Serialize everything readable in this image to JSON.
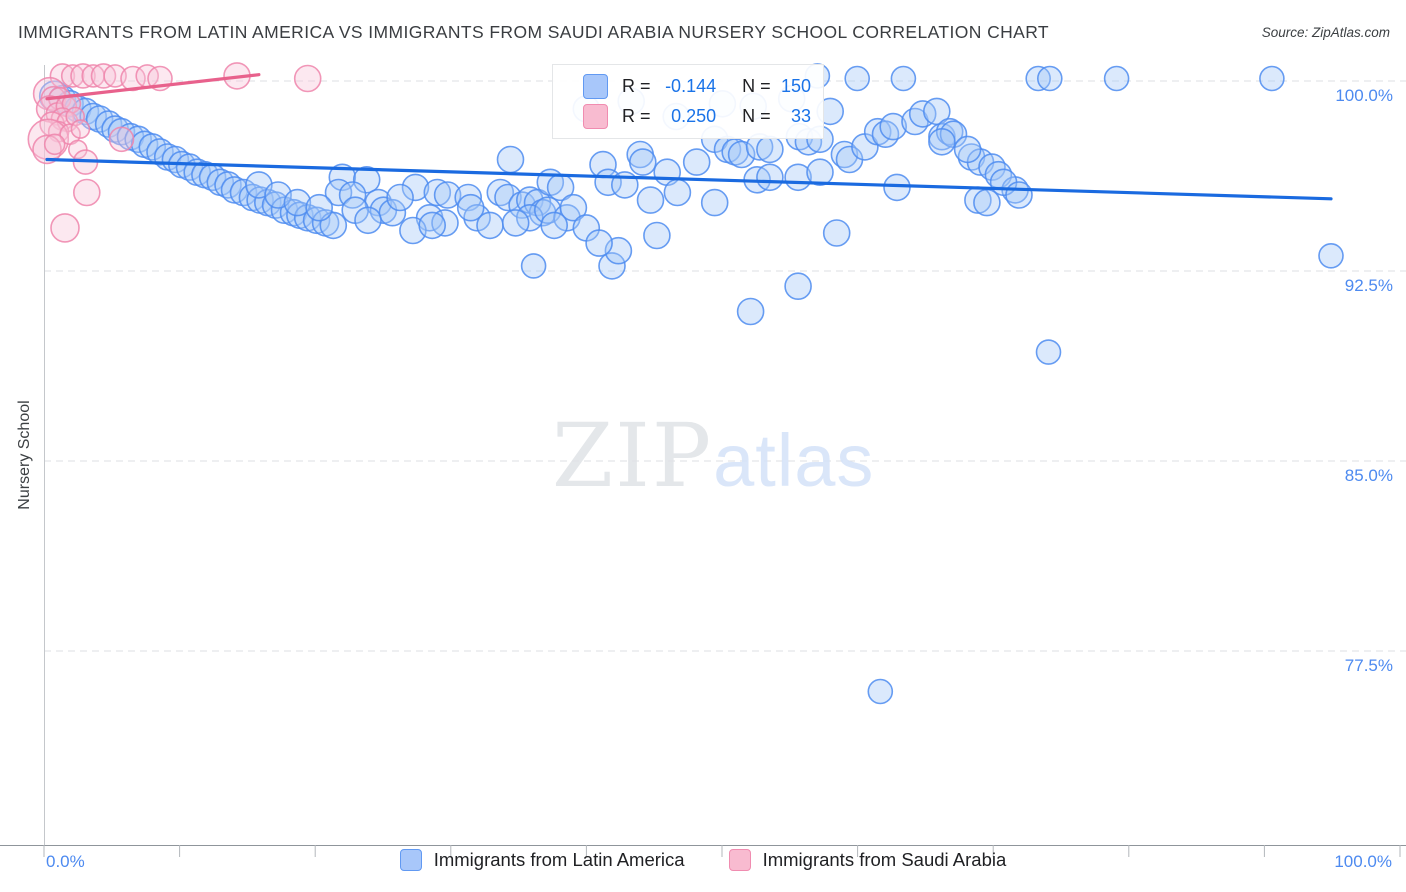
{
  "header": {
    "title": "IMMIGRANTS FROM LATIN AMERICA VS IMMIGRANTS FROM SAUDI ARABIA NURSERY SCHOOL CORRELATION CHART",
    "source": "Source: ZipAtlas.com"
  },
  "legend_box": {
    "rows": [
      {
        "r_label": "R =",
        "r_value": "-0.144",
        "n_label": "N =",
        "n_value": "150",
        "swatch_fill": "#a8c7fa",
        "swatch_border": "#6199f2"
      },
      {
        "r_label": "R =",
        "r_value": "0.250",
        "n_label": "N =",
        "n_value": "33",
        "swatch_fill": "#f8bbd0",
        "swatch_border": "#f08cb0"
      }
    ]
  },
  "axes": {
    "y_label": "Nursery School",
    "y_ticks": [
      "100.0%",
      "92.5%",
      "85.0%",
      "77.5%"
    ],
    "x_min_label": "0.0%",
    "x_max_label": "100.0%"
  },
  "bottom_legend": {
    "items": [
      {
        "label": "Immigrants from Latin America",
        "swatch_fill": "#a8c7fa",
        "swatch_border": "#6199f2"
      },
      {
        "label": "Immigrants from Saudi Arabia",
        "swatch_fill": "#f8bbd0",
        "swatch_border": "#f08cb0"
      }
    ]
  },
  "watermark": {
    "zip": "ZIP",
    "atlas": "atlas"
  },
  "chart_data": {
    "type": "scatter",
    "x_range": [
      0,
      100
    ],
    "y_range": [
      69.5,
      100.6
    ],
    "y_gridlines": [
      100,
      92.5,
      85,
      77.5
    ],
    "x_tick_count": 11,
    "grid": "dashed-horizontal",
    "legend_position": "top-center and bottom-center",
    "series": [
      {
        "name": "Immigrants from Latin America",
        "R": -0.144,
        "N": 150,
        "point_fill": "#a6c8f7",
        "point_stroke": "#4e8cf0",
        "default_r": 13,
        "trendline": {
          "x1": 0,
          "y1": 96.9,
          "x2": 100,
          "y2": 95.35,
          "color": "#1a6ae0"
        },
        "points": [
          [
            0.6,
            99.4,
            15
          ],
          [
            1.2,
            99.3
          ],
          [
            1.8,
            99.1
          ],
          [
            2.4,
            98.9
          ],
          [
            3.0,
            98.8
          ],
          [
            3.6,
            98.6
          ],
          [
            4.1,
            98.5
          ],
          [
            4.8,
            98.3
          ],
          [
            5.3,
            98.1
          ],
          [
            5.8,
            98.0
          ],
          [
            6.5,
            97.8
          ],
          [
            7.1,
            97.7
          ],
          [
            7.6,
            97.5
          ],
          [
            8.2,
            97.4
          ],
          [
            8.8,
            97.2
          ],
          [
            9.4,
            97.0
          ],
          [
            10.0,
            96.9
          ],
          [
            10.5,
            96.7
          ],
          [
            11.1,
            96.6
          ],
          [
            11.7,
            96.4
          ],
          [
            12.3,
            96.3
          ],
          [
            12.9,
            96.2
          ],
          [
            13.5,
            96.0
          ],
          [
            14.1,
            95.9
          ],
          [
            14.6,
            95.7
          ],
          [
            15.3,
            95.6
          ],
          [
            16.0,
            95.4
          ],
          [
            16.6,
            95.3
          ],
          [
            17.2,
            95.2
          ],
          [
            17.8,
            95.1
          ],
          [
            18.5,
            94.9
          ],
          [
            19.2,
            94.8
          ],
          [
            19.7,
            94.7
          ],
          [
            20.3,
            94.6
          ],
          [
            21.0,
            94.5
          ],
          [
            21.7,
            94.4
          ],
          [
            22.3,
            94.3
          ],
          [
            23.0,
            96.2
          ],
          [
            24.9,
            96.1
          ],
          [
            22.7,
            95.6
          ],
          [
            23.8,
            95.5
          ],
          [
            25.8,
            95.2
          ],
          [
            28.7,
            95.8
          ],
          [
            30.4,
            95.6
          ],
          [
            31.2,
            95.5
          ],
          [
            32.8,
            95.4
          ],
          [
            26.2,
            94.9
          ],
          [
            26.9,
            94.8
          ],
          [
            29.8,
            94.6
          ],
          [
            31.0,
            94.4
          ],
          [
            33.5,
            94.6
          ],
          [
            28.5,
            94.1
          ],
          [
            36.1,
            96.9
          ],
          [
            35.3,
            95.6
          ],
          [
            35.9,
            95.4
          ],
          [
            37.0,
            95.1
          ],
          [
            37.6,
            95.3
          ],
          [
            38.2,
            95.2
          ],
          [
            39.2,
            96.0
          ],
          [
            40.0,
            95.8
          ],
          [
            38.6,
            94.8
          ],
          [
            37.6,
            94.6
          ],
          [
            39.0,
            94.9
          ],
          [
            40.5,
            94.6
          ],
          [
            41.0,
            95.0
          ],
          [
            37.9,
            92.7,
            12
          ],
          [
            44.0,
            92.7
          ],
          [
            44.5,
            93.3
          ],
          [
            47.5,
            93.9
          ],
          [
            43.3,
            96.7
          ],
          [
            43.7,
            96.0
          ],
          [
            46.2,
            97.1
          ],
          [
            46.4,
            96.8
          ],
          [
            48.3,
            96.4
          ],
          [
            49.1,
            95.6
          ],
          [
            58.5,
            91.9
          ],
          [
            54.8,
            90.9
          ],
          [
            61.5,
            94.0
          ],
          [
            50.6,
            96.8
          ],
          [
            52.0,
            97.7
          ],
          [
            53.0,
            97.3
          ],
          [
            53.6,
            97.2
          ],
          [
            54.1,
            97.1
          ],
          [
            55.5,
            97.4
          ],
          [
            56.3,
            97.3
          ],
          [
            58.6,
            97.8
          ],
          [
            59.3,
            97.6
          ],
          [
            60.2,
            97.7
          ],
          [
            52.0,
            95.2
          ],
          [
            55.3,
            96.1
          ],
          [
            56.3,
            96.2
          ],
          [
            58.5,
            96.2
          ],
          [
            60.2,
            96.4
          ],
          [
            62.1,
            97.1
          ],
          [
            62.5,
            96.9
          ],
          [
            63.7,
            97.4
          ],
          [
            64.7,
            98.0
          ],
          [
            65.3,
            97.9
          ],
          [
            65.9,
            98.2
          ],
          [
            67.6,
            98.4
          ],
          [
            68.2,
            98.7
          ],
          [
            69.3,
            98.8
          ],
          [
            69.7,
            97.8
          ],
          [
            70.3,
            98.0
          ],
          [
            72.0,
            97.0
          ],
          [
            72.7,
            96.8
          ],
          [
            73.6,
            96.6
          ],
          [
            74.1,
            96.3
          ],
          [
            72.5,
            95.3
          ],
          [
            75.4,
            95.7
          ],
          [
            66.2,
            95.8
          ],
          [
            70.6,
            97.9
          ],
          [
            69.7,
            97.6
          ],
          [
            71.7,
            97.3
          ],
          [
            74.5,
            96.0
          ],
          [
            73.2,
            95.2
          ],
          [
            75.7,
            95.5
          ],
          [
            60.0,
            100.2,
            12
          ],
          [
            52.6,
            99.1
          ],
          [
            63.1,
            100.1,
            12
          ],
          [
            66.7,
            100.1,
            12
          ],
          [
            77.2,
            100.1,
            12
          ],
          [
            78.1,
            100.1,
            12
          ],
          [
            83.3,
            100.1,
            12
          ],
          [
            95.4,
            100.1,
            12
          ],
          [
            64.9,
            75.9,
            12
          ],
          [
            78.0,
            89.3,
            12
          ],
          [
            100.0,
            93.1,
            12
          ],
          [
            42.0,
            98.9
          ],
          [
            45.5,
            99.2
          ],
          [
            49.0,
            98.6
          ],
          [
            55.0,
            99.0
          ],
          [
            58.0,
            99.3
          ],
          [
            61.0,
            98.8
          ],
          [
            16.5,
            95.9
          ],
          [
            18.0,
            95.5
          ],
          [
            19.5,
            95.2
          ],
          [
            21.2,
            95.0
          ],
          [
            24.0,
            94.9
          ],
          [
            25.0,
            94.5
          ],
          [
            27.5,
            95.4
          ],
          [
            30.0,
            94.3
          ],
          [
            33.0,
            95.0
          ],
          [
            34.5,
            94.3
          ],
          [
            36.5,
            94.4
          ],
          [
            39.5,
            94.3
          ],
          [
            42.0,
            94.2
          ],
          [
            43.0,
            93.6
          ],
          [
            45.0,
            95.9
          ],
          [
            47.0,
            95.3
          ]
        ]
      },
      {
        "name": "Immigrants from Saudi Arabia",
        "R": 0.25,
        "N": 33,
        "point_fill": "#f7c6da",
        "point_stroke": "#ef85ac",
        "default_r": 12,
        "trendline": {
          "x1": 0,
          "y1": 99.3,
          "x2": 16.5,
          "y2": 100.25,
          "color": "#e8618c"
        },
        "points": [
          [
            1.2,
            100.2,
            12
          ],
          [
            2.0,
            100.2,
            11
          ],
          [
            2.8,
            100.2,
            12
          ],
          [
            3.6,
            100.2,
            11
          ],
          [
            4.4,
            100.2,
            12
          ],
          [
            5.3,
            100.2,
            11
          ],
          [
            6.7,
            100.1,
            12
          ],
          [
            7.8,
            100.2,
            11
          ],
          [
            8.8,
            100.1,
            12
          ],
          [
            14.8,
            100.2,
            13
          ],
          [
            20.3,
            100.1,
            13
          ],
          [
            0.2,
            99.5,
            16
          ],
          [
            0.5,
            99.3,
            12
          ],
          [
            1.0,
            99.3,
            11
          ],
          [
            0.2,
            98.9,
            13
          ],
          [
            0.8,
            98.7,
            11
          ],
          [
            1.5,
            99.0,
            10
          ],
          [
            1.9,
            99.1,
            9
          ],
          [
            1.2,
            98.5,
            11
          ],
          [
            0.4,
            98.3,
            12
          ],
          [
            1.6,
            98.4,
            10
          ],
          [
            2.2,
            98.6,
            9
          ],
          [
            0.9,
            98.0,
            10
          ],
          [
            0.1,
            97.7,
            20
          ],
          [
            1.8,
            97.9,
            10
          ],
          [
            2.6,
            98.1,
            9
          ],
          [
            0.0,
            97.3,
            14
          ],
          [
            0.6,
            97.5,
            10
          ],
          [
            2.4,
            97.3,
            9
          ],
          [
            3.0,
            96.8,
            12
          ],
          [
            5.8,
            97.7,
            12
          ],
          [
            3.1,
            95.6,
            13
          ],
          [
            1.4,
            94.2,
            14
          ]
        ]
      }
    ]
  }
}
